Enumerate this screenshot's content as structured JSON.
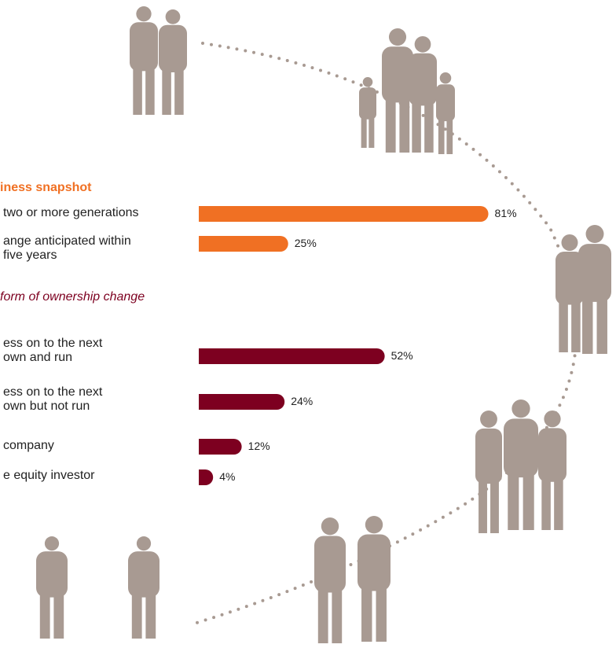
{
  "chart_data": [
    {
      "type": "bar",
      "orientation": "horizontal",
      "title": "iness snapshot",
      "categories": [
        "two or more generations",
        "ange anticipated within\nfive years"
      ],
      "values": [
        81,
        25
      ],
      "value_labels": [
        "81%",
        "25%"
      ],
      "color": "#f07023"
    },
    {
      "type": "bar",
      "orientation": "horizontal",
      "title": "form of ownership change",
      "categories": [
        "ess on to the next\nown and run",
        "ess on to the next\nown but not run",
        "company",
        "e equity investor"
      ],
      "values": [
        52,
        24,
        12,
        4
      ],
      "value_labels": [
        "52%",
        "24%",
        "12%",
        "4%"
      ],
      "color": "#7d0020"
    }
  ]
}
